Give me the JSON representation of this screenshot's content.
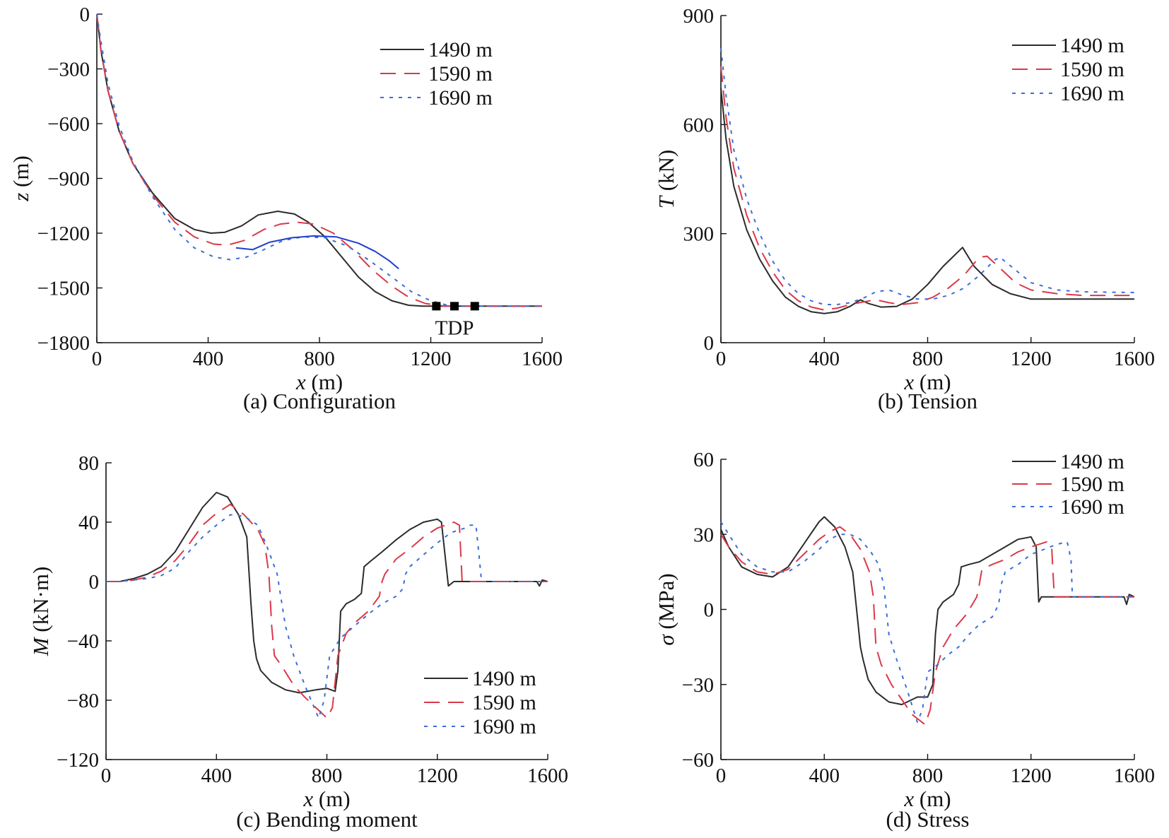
{
  "chart_data": [
    {
      "id": "a",
      "type": "line",
      "caption": "(a) Configuration",
      "xlabel": {
        "sym": "x",
        "unit": "(m)"
      },
      "ylabel": {
        "sym": "z",
        "unit": "(m)"
      },
      "xlim": [
        0,
        1600
      ],
      "ylim": [
        -1800,
        0
      ],
      "xticks": [
        0,
        400,
        800,
        1200,
        1600
      ],
      "yticks": [
        0,
        -300,
        -600,
        -900,
        -1200,
        -1500,
        -1800
      ],
      "legend_position": "top-right",
      "grid": false,
      "annotation": {
        "text": "TDP",
        "markers_x": [
          1220,
          1285,
          1358
        ],
        "marker_y": -1600
      },
      "series": [
        {
          "name": "1490 m",
          "color": "#2b2b2b",
          "dash": "solid",
          "x": [
            0,
            15,
            40,
            80,
            130,
            200,
            280,
            350,
            410,
            460,
            520,
            580,
            650,
            710,
            760,
            820,
            880,
            940,
            1000,
            1060,
            1120,
            1170,
            1220,
            1300,
            1400,
            1500,
            1600
          ],
          "y": [
            0,
            -200,
            -420,
            -640,
            -820,
            -980,
            -1120,
            -1180,
            -1200,
            -1195,
            -1160,
            -1100,
            -1080,
            -1095,
            -1140,
            -1220,
            -1330,
            -1440,
            -1520,
            -1570,
            -1595,
            -1600,
            -1600,
            -1600,
            -1600,
            -1600,
            -1600
          ]
        },
        {
          "name": "1590 m",
          "color": "#d93a4a",
          "dash": "long",
          "x": [
            0,
            15,
            40,
            80,
            130,
            200,
            280,
            350,
            420,
            470,
            530,
            600,
            660,
            720,
            780,
            850,
            920,
            990,
            1060,
            1120,
            1180,
            1240,
            1285,
            1350,
            1450,
            1600
          ],
          "y": [
            0,
            -200,
            -420,
            -640,
            -820,
            -990,
            -1140,
            -1220,
            -1260,
            -1265,
            -1240,
            -1180,
            -1150,
            -1140,
            -1150,
            -1200,
            -1290,
            -1400,
            -1490,
            -1550,
            -1585,
            -1598,
            -1600,
            -1600,
            -1600,
            -1600
          ]
        },
        {
          "name": "1690 m",
          "color": "#3b6fd8",
          "dash": "dot",
          "x": [
            0,
            15,
            40,
            80,
            130,
            200,
            280,
            350,
            420,
            480,
            540,
            600,
            670,
            740,
            820,
            900,
            980,
            1060,
            1130,
            1200,
            1260,
            1320,
            1358,
            1450,
            1600
          ],
          "y": [
            0,
            -150,
            -380,
            -610,
            -810,
            -1000,
            -1180,
            -1280,
            -1330,
            -1345,
            -1330,
            -1290,
            -1240,
            -1220,
            -1225,
            -1270,
            -1350,
            -1440,
            -1520,
            -1570,
            -1595,
            -1600,
            -1600,
            -1600,
            -1600
          ]
        },
        {
          "name": "",
          "color": "#1f3fd0",
          "dash": "solid",
          "legend": false,
          "x": [
            500,
            560,
            620,
            700,
            780,
            860,
            940,
            1000,
            1050,
            1085
          ],
          "y": [
            -1280,
            -1290,
            -1250,
            -1225,
            -1215,
            -1220,
            -1255,
            -1300,
            -1350,
            -1395
          ]
        }
      ]
    },
    {
      "id": "b",
      "type": "line",
      "caption": "(b) Tension",
      "xlabel": {
        "sym": "x",
        "unit": "(m)"
      },
      "ylabel": {
        "sym": "T",
        "unit": "(kN)"
      },
      "xlim": [
        0,
        1600
      ],
      "ylim": [
        0,
        900
      ],
      "xticks": [
        0,
        400,
        800,
        1200,
        1600
      ],
      "yticks": [
        0,
        300,
        600,
        900
      ],
      "legend_position": "top-right",
      "grid": false,
      "series": [
        {
          "name": "1490 m",
          "color": "#2b2b2b",
          "dash": "solid",
          "x": [
            0,
            20,
            50,
            100,
            150,
            200,
            250,
            300,
            350,
            400,
            450,
            500,
            540,
            570,
            620,
            680,
            740,
            800,
            860,
            935,
            980,
            1050,
            1120,
            1200,
            1300,
            1400,
            1600
          ],
          "y": [
            700,
            560,
            430,
            310,
            230,
            170,
            125,
            100,
            85,
            80,
            85,
            100,
            118,
            108,
            98,
            100,
            120,
            160,
            210,
            262,
            210,
            160,
            135,
            120,
            120,
            120,
            120
          ]
        },
        {
          "name": "1590 m",
          "color": "#d93a4a",
          "dash": "long",
          "x": [
            0,
            20,
            50,
            100,
            150,
            200,
            250,
            300,
            350,
            400,
            450,
            500,
            550,
            600,
            650,
            700,
            760,
            820,
            880,
            940,
            1000,
            1030,
            1080,
            1140,
            1200,
            1300,
            1400,
            1600
          ],
          "y": [
            760,
            620,
            480,
            350,
            260,
            195,
            145,
            115,
            98,
            90,
            95,
            105,
            112,
            118,
            110,
            105,
            110,
            125,
            150,
            185,
            235,
            238,
            205,
            165,
            145,
            135,
            130,
            130
          ]
        },
        {
          "name": "1690 m",
          "color": "#3b6fd8",
          "dash": "dot",
          "x": [
            0,
            20,
            50,
            100,
            150,
            200,
            250,
            300,
            350,
            400,
            450,
            500,
            550,
            600,
            650,
            700,
            760,
            820,
            880,
            940,
            1000,
            1060,
            1080,
            1140,
            1200,
            1300,
            1400,
            1600
          ],
          "y": [
            810,
            680,
            530,
            395,
            300,
            225,
            170,
            135,
            115,
            105,
            105,
            110,
            122,
            140,
            145,
            132,
            120,
            120,
            130,
            150,
            185,
            228,
            235,
            200,
            165,
            145,
            140,
            138
          ]
        }
      ]
    },
    {
      "id": "c",
      "type": "line",
      "caption": "(c) Bending moment",
      "xlabel": {
        "sym": "x",
        "unit": "(m)"
      },
      "ylabel": {
        "sym": "M",
        "unit": "(kN·m)"
      },
      "xlim": [
        0,
        1600
      ],
      "ylim": [
        -120,
        80
      ],
      "xticks": [
        0,
        400,
        800,
        1200,
        1600
      ],
      "yticks": [
        80,
        40,
        0,
        -40,
        -80,
        -120
      ],
      "legend_position": "bottom-right",
      "grid": false,
      "series": [
        {
          "name": "1490 m",
          "color": "#2b2b2b",
          "dash": "solid",
          "x": [
            0,
            50,
            100,
            150,
            200,
            250,
            300,
            350,
            400,
            440,
            480,
            510,
            525,
            535,
            545,
            560,
            600,
            650,
            700,
            760,
            800,
            830,
            840,
            850,
            870,
            900,
            925,
            935,
            960,
            1000,
            1050,
            1100,
            1150,
            1200,
            1215,
            1240,
            1260,
            1300,
            1400,
            1500,
            1560,
            1570,
            1580,
            1600
          ],
          "y": [
            0,
            0,
            2,
            5,
            10,
            20,
            35,
            50,
            60,
            57,
            45,
            30,
            -15,
            -40,
            -52,
            -60,
            -68,
            -73,
            -75,
            -73,
            -72,
            -74,
            -60,
            -20,
            -15,
            -12,
            -8,
            10,
            14,
            20,
            28,
            35,
            40,
            42,
            40,
            -3,
            0,
            0,
            0,
            0,
            0,
            -3,
            1,
            0
          ]
        },
        {
          "name": "1590 m",
          "color": "#d93a4a",
          "dash": "long",
          "x": [
            0,
            50,
            100,
            150,
            200,
            250,
            300,
            350,
            400,
            450,
            500,
            550,
            575,
            590,
            600,
            610,
            640,
            680,
            720,
            760,
            800,
            820,
            840,
            870,
            900,
            950,
            990,
            1000,
            1010,
            1050,
            1100,
            1150,
            1200,
            1260,
            1280,
            1290,
            1300,
            1400,
            1500,
            1580,
            1600
          ],
          "y": [
            0,
            0,
            1,
            3,
            7,
            14,
            25,
            38,
            46,
            52,
            45,
            35,
            25,
            5,
            -30,
            -50,
            -58,
            -70,
            -78,
            -85,
            -92,
            -85,
            -50,
            -35,
            -28,
            -20,
            -10,
            0,
            5,
            15,
            22,
            30,
            36,
            40,
            38,
            0,
            0,
            0,
            0,
            0,
            0
          ]
        },
        {
          "name": "1690 m",
          "color": "#3b6fd8",
          "dash": "dot",
          "x": [
            0,
            50,
            100,
            150,
            200,
            250,
            300,
            350,
            400,
            450,
            500,
            550,
            580,
            600,
            620,
            650,
            680,
            720,
            770,
            790,
            810,
            850,
            900,
            950,
            1000,
            1050,
            1075,
            1085,
            1100,
            1150,
            1200,
            1250,
            1300,
            1320,
            1340,
            1350,
            1360,
            1400,
            1500,
            1600
          ],
          "y": [
            0,
            0,
            1,
            2,
            4,
            9,
            20,
            30,
            38,
            45,
            44,
            38,
            25,
            15,
            5,
            -30,
            -50,
            -70,
            -92,
            -80,
            -50,
            -38,
            -30,
            -22,
            -15,
            -10,
            -5,
            5,
            10,
            18,
            26,
            33,
            36,
            38,
            38,
            20,
            0,
            0,
            0,
            0
          ]
        }
      ]
    },
    {
      "id": "d",
      "type": "line",
      "caption": "(d) Stress",
      "xlabel": {
        "sym": "x",
        "unit": "(m)"
      },
      "ylabel": {
        "sym": "σ",
        "unit": "(MPa)"
      },
      "xlim": [
        0,
        1600
      ],
      "ylim": [
        -60,
        60
      ],
      "xticks": [
        0,
        400,
        800,
        1200,
        1600
      ],
      "yticks": [
        60,
        30,
        0,
        -30,
        -60
      ],
      "legend_position": "top-right",
      "grid": false,
      "series": [
        {
          "name": "1490 m",
          "color": "#2b2b2b",
          "dash": "solid",
          "x": [
            0,
            30,
            80,
            140,
            200,
            260,
            320,
            380,
            400,
            440,
            480,
            510,
            530,
            540,
            550,
            570,
            600,
            650,
            700,
            760,
            800,
            820,
            830,
            840,
            860,
            900,
            920,
            930,
            960,
            1000,
            1050,
            1100,
            1150,
            1200,
            1220,
            1230,
            1240,
            1300,
            1400,
            1500,
            1560,
            1570,
            1580,
            1600
          ],
          "y": [
            32,
            25,
            17,
            14,
            13,
            17,
            26,
            35,
            37,
            33,
            25,
            15,
            -5,
            -15,
            -20,
            -28,
            -33,
            -37,
            -38,
            -35,
            -35,
            -30,
            -10,
            0,
            3,
            6,
            10,
            17,
            18,
            19,
            22,
            25,
            28,
            29,
            25,
            3,
            5,
            5,
            5,
            5,
            5,
            2,
            6,
            5
          ]
        },
        {
          "name": "1590 m",
          "color": "#d93a4a",
          "dash": "long",
          "x": [
            0,
            30,
            80,
            140,
            200,
            260,
            320,
            380,
            420,
            460,
            500,
            540,
            575,
            590,
            600,
            620,
            660,
            700,
            740,
            790,
            810,
            830,
            860,
            900,
            950,
            990,
            1000,
            1010,
            1050,
            1100,
            1150,
            1200,
            1260,
            1280,
            1290,
            1300,
            1400,
            1500,
            1580,
            1600
          ],
          "y": [
            30,
            25,
            19,
            15,
            14,
            16,
            22,
            28,
            31,
            33,
            30,
            24,
            15,
            5,
            -15,
            -22,
            -30,
            -36,
            -42,
            -46,
            -40,
            -25,
            -15,
            -8,
            -2,
            5,
            10,
            16,
            18,
            20,
            23,
            25,
            27,
            25,
            5,
            5,
            5,
            5,
            5,
            5
          ]
        },
        {
          "name": "1690 m",
          "color": "#3b6fd8",
          "dash": "dot",
          "x": [
            0,
            30,
            80,
            140,
            200,
            260,
            320,
            380,
            420,
            460,
            500,
            540,
            580,
            610,
            630,
            650,
            680,
            720,
            760,
            780,
            800,
            840,
            880,
            920,
            960,
            1000,
            1050,
            1075,
            1085,
            1100,
            1150,
            1200,
            1250,
            1300,
            1340,
            1355,
            1360,
            1400,
            1500,
            1600
          ],
          "y": [
            35,
            30,
            22,
            17,
            15,
            15,
            19,
            24,
            28,
            30,
            30,
            28,
            23,
            18,
            10,
            -10,
            -20,
            -32,
            -45,
            -40,
            -25,
            -22,
            -18,
            -15,
            -10,
            -6,
            -3,
            2,
            10,
            15,
            18,
            22,
            24,
            26,
            27,
            20,
            5,
            5,
            5,
            5
          ]
        }
      ]
    }
  ]
}
